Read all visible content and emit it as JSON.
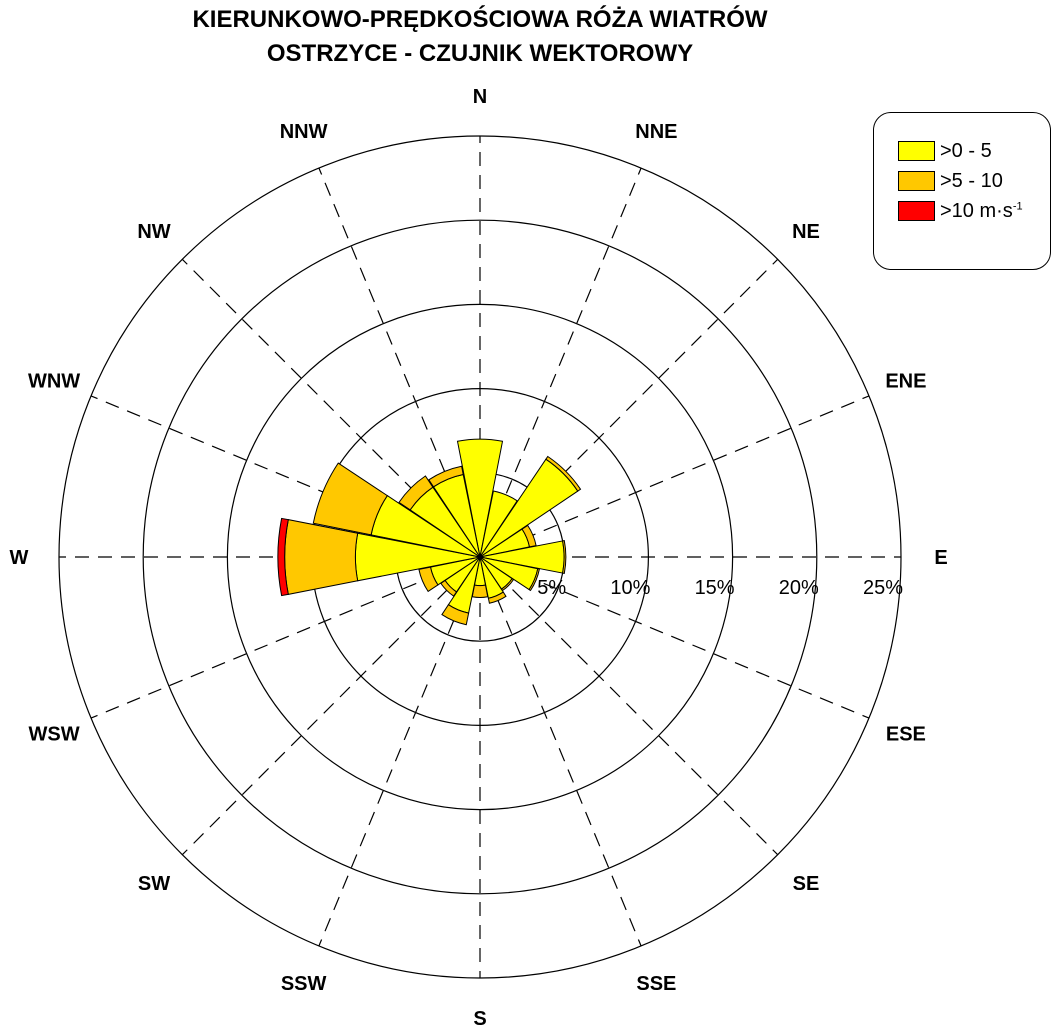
{
  "title_line1": "KIERUNKOWO-PRĘDKOŚCIOWA RÓŻA WIATRÓW",
  "title_line2": "OSTRZYCE -  CZUJNIK WEKTOROWY",
  "legend": {
    "items": [
      {
        "label": ">0 - 5",
        "color": "#FFFF00"
      },
      {
        "label": ">5 - 10",
        "color": "#FFC800"
      },
      {
        "label": ">10 m·s",
        "sup": "-1",
        "color": "#FF0000"
      }
    ]
  },
  "chart_data": {
    "type": "wind_rose",
    "directions": [
      "N",
      "NNE",
      "NE",
      "ENE",
      "E",
      "ESE",
      "SE",
      "SSE",
      "S",
      "SSW",
      "SW",
      "WSW",
      "W",
      "WNW",
      "NW",
      "NNW"
    ],
    "radial_ticks": [
      "5%",
      "10%",
      "15%",
      "20%",
      "25%"
    ],
    "radial_max": 25,
    "speed_classes": [
      ">0 - 5",
      ">5 - 10",
      ">10 m·s-1"
    ],
    "series": [
      {
        "name": ">0 - 5",
        "values": [
          7.0,
          4.0,
          7.0,
          3.0,
          5.0,
          3.5,
          2.3,
          2.5,
          1.7,
          3.4,
          2.5,
          3.0,
          7.4,
          6.6,
          5.0,
          5.0
        ]
      },
      {
        "name": ">5 - 10",
        "values": [
          0.0,
          0.0,
          0.2,
          0.4,
          0.1,
          0.1,
          0.1,
          0.3,
          0.7,
          0.7,
          0.3,
          0.7,
          4.2,
          3.5,
          0.8,
          0.5
        ]
      },
      {
        "name": ">10 m·s-1",
        "values": [
          0.0,
          0.0,
          0.0,
          0.0,
          0.0,
          0.0,
          0.0,
          0.0,
          0.0,
          0.0,
          0.0,
          0.0,
          0.4,
          0.0,
          0.0,
          0.0
        ]
      }
    ],
    "colors": [
      "#FFFF00",
      "#FFC800",
      "#FF0000"
    ]
  }
}
